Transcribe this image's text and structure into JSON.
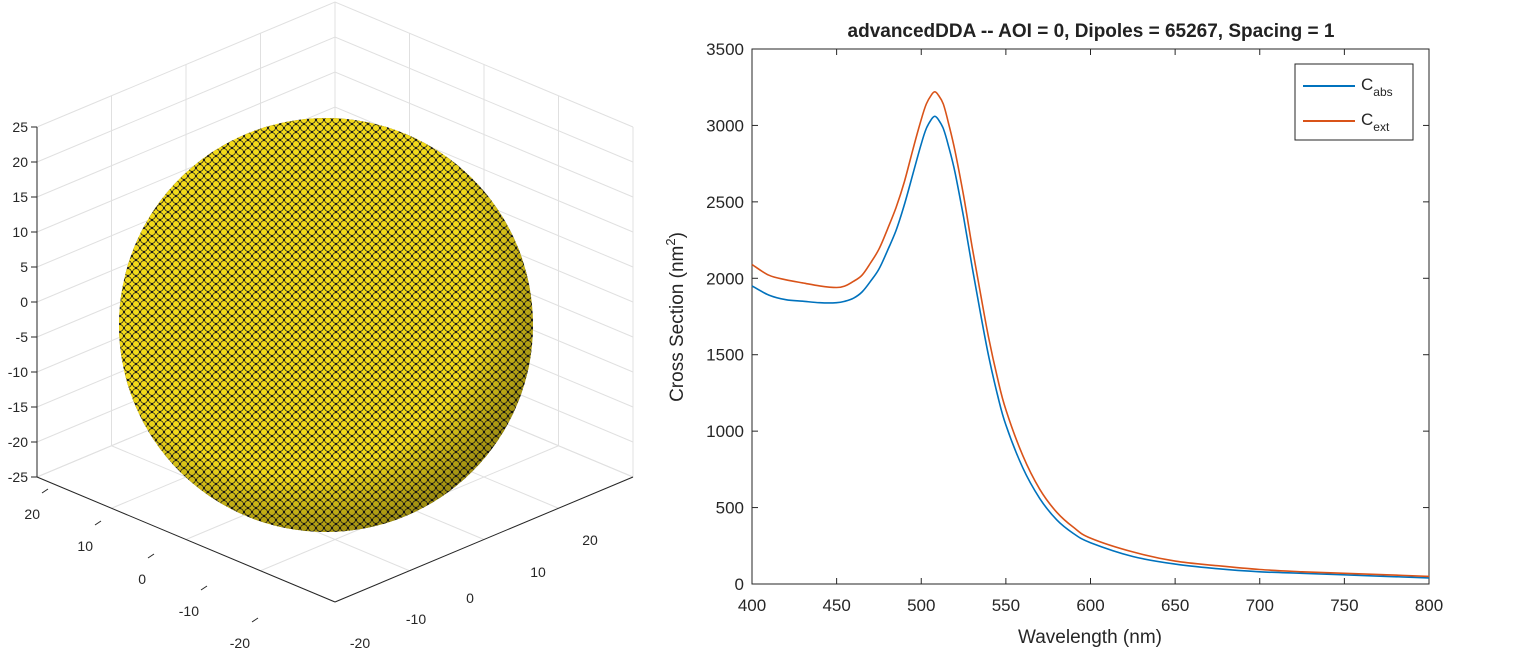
{
  "chart_data": [
    {
      "type": "scatter",
      "title": "",
      "subtitle": "",
      "marker_color": "#f2d91a",
      "marker_edge_color": "#1a1a1a",
      "grid": true,
      "z_ticks": [
        "25",
        "20",
        "15",
        "10",
        "5",
        "0",
        "-5",
        "-10",
        "-15",
        "-20",
        "-25"
      ],
      "x_ticks_left": [
        "20",
        "10",
        "0",
        "-10",
        "-20"
      ],
      "y_ticks_right": [
        "20",
        "10",
        "0",
        "-10",
        "-20"
      ],
      "zlim": [
        -25,
        25
      ],
      "xlim": [
        -25,
        25
      ],
      "ylim": [
        -25,
        25
      ]
    },
    {
      "type": "line",
      "title": "advancedDDA -- AOI = 0, Dipoles = 65267, Spacing = 1",
      "xlabel": "Wavelength (nm)",
      "ylabel_main": "Cross Section (nm",
      "ylabel_sup": "2",
      "ylabel_close": ")",
      "xlim": [
        400,
        800
      ],
      "ylim": [
        0,
        3500
      ],
      "x_ticks": [
        "400",
        "450",
        "500",
        "550",
        "600",
        "650",
        "700",
        "750",
        "800"
      ],
      "y_ticks": [
        "0",
        "500",
        "1000",
        "1500",
        "2000",
        "2500",
        "3000",
        "3500"
      ],
      "legend_position": "top-right",
      "x": [
        400,
        410,
        420,
        430,
        440,
        450,
        455,
        460,
        465,
        470,
        475,
        480,
        485,
        490,
        495,
        500,
        503,
        506,
        508,
        510,
        513,
        516,
        520,
        525,
        530,
        535,
        540,
        545,
        550,
        560,
        570,
        580,
        590,
        600,
        625,
        650,
        675,
        700,
        725,
        750,
        775,
        800
      ],
      "series": [
        {
          "legend_main": "C",
          "legend_sub": "abs",
          "color": "#0072bd",
          "values": [
            1950,
            1890,
            1860,
            1850,
            1840,
            1840,
            1850,
            1870,
            1910,
            1980,
            2060,
            2180,
            2310,
            2480,
            2680,
            2880,
            2980,
            3040,
            3060,
            3040,
            2980,
            2870,
            2690,
            2400,
            2080,
            1770,
            1480,
            1240,
            1040,
            760,
            560,
            420,
            330,
            270,
            180,
            130,
            100,
            80,
            70,
            60,
            50,
            40
          ]
        },
        {
          "legend_main": "C",
          "legend_sub": "ext",
          "color": "#d95319",
          "values": [
            2090,
            2020,
            1990,
            1970,
            1950,
            1940,
            1950,
            1980,
            2020,
            2100,
            2190,
            2320,
            2460,
            2630,
            2840,
            3040,
            3140,
            3200,
            3220,
            3200,
            3140,
            3020,
            2830,
            2540,
            2210,
            1900,
            1600,
            1350,
            1140,
            840,
            620,
            470,
            370,
            300,
            210,
            150,
            120,
            95,
            80,
            70,
            60,
            50
          ]
        }
      ]
    }
  ]
}
